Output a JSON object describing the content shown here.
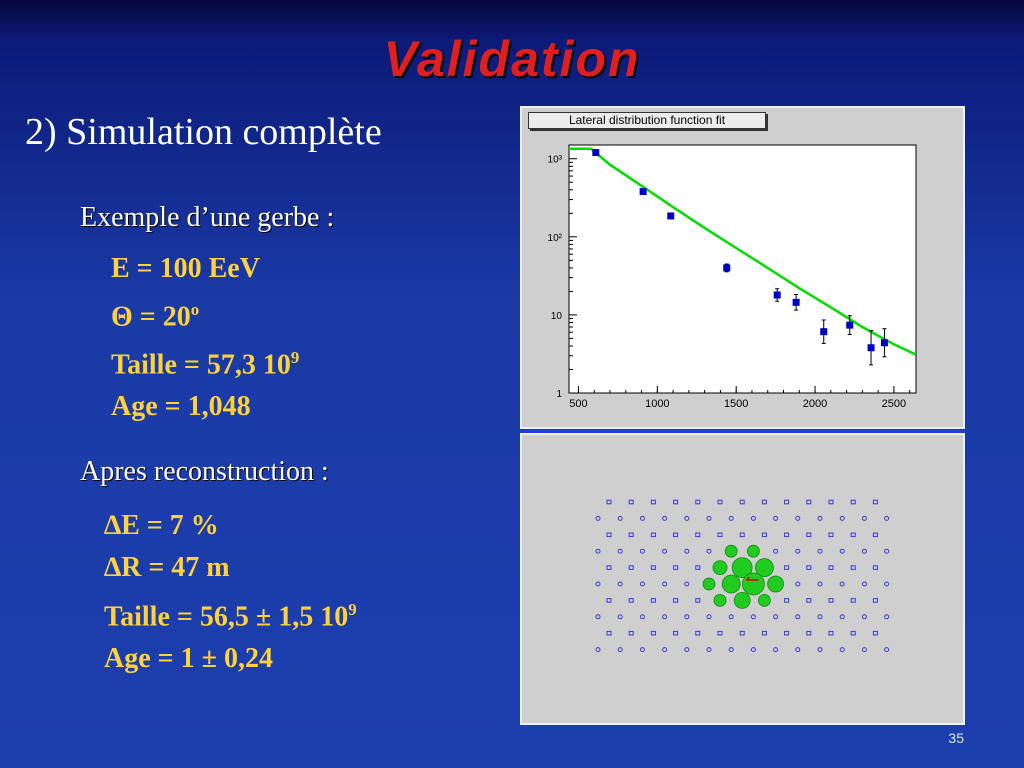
{
  "slide": {
    "title": "Validation",
    "subtitle": "2) Simulation complète",
    "section1": {
      "heading": "Exemple d’une gerbe :",
      "energy": "E = 100 EeV",
      "theta": "Θ = 20",
      "theta_sup": "o",
      "size": "Taille = 57,3 10",
      "size_sup": "9",
      "age": "Age = 1,048"
    },
    "section2": {
      "heading": "Apres reconstruction :",
      "delta_e": "∆E = 7 %",
      "delta_r": "∆R = 47 m",
      "size": "Taille = 56,5 ± 1,5 10",
      "size_sup": "9",
      "age": "Age = 1 ± 0,24"
    },
    "page_number": "35"
  },
  "chart_data": [
    {
      "type": "scatter",
      "title": "Lateral distribution function fit",
      "xlabel": "",
      "ylabel": "",
      "xlim": [
        440,
        2640
      ],
      "ylim": [
        1,
        1500
      ],
      "log_y": true,
      "x_ticks": [
        "500",
        "1000",
        "1500",
        "2000",
        "2500"
      ],
      "x_tick_values": [
        500,
        1000,
        1500,
        2000,
        2500
      ],
      "y_ticks": [
        "1",
        "10",
        "10²",
        "10³"
      ],
      "y_tick_values": [
        1,
        10,
        100,
        1000
      ],
      "points": [
        {
          "x": 610,
          "y": 1200,
          "err": 0
        },
        {
          "x": 910,
          "y": 380,
          "err": 0
        },
        {
          "x": 1085,
          "y": 185,
          "err": 0
        },
        {
          "x": 1440,
          "y": 40,
          "err": 0.05
        },
        {
          "x": 1760,
          "y": 18,
          "err": 0.08
        },
        {
          "x": 1880,
          "y": 14.5,
          "err": 0.1
        },
        {
          "x": 2055,
          "y": 6.1,
          "err": 0.15
        },
        {
          "x": 2220,
          "y": 7.4,
          "err": 0.12
        },
        {
          "x": 2355,
          "y": 3.8,
          "err": 0.22
        },
        {
          "x": 2440,
          "y": 4.4,
          "err": 0.18
        }
      ],
      "fit": {
        "x": [
          440,
          580,
          700,
          900,
          1100,
          1300,
          1500,
          1700,
          1900,
          2100,
          2300,
          2500,
          2640
        ],
        "y": [
          1340,
          1340,
          840,
          450,
          240,
          130,
          72,
          40,
          22,
          12.5,
          7,
          4.2,
          3.1
        ]
      },
      "colors": {
        "points": "#0000cc",
        "fit": "#00dd00",
        "errbars": "#000000"
      }
    },
    {
      "type": "scatter",
      "title": "",
      "detector_rows": 10,
      "detector_cols": 14,
      "detectors": {
        "odd_shape": "square",
        "even_shape": "circle",
        "color": "#3a3ad8"
      },
      "hits": [
        {
          "col": 6,
          "row": 3,
          "r": 6
        },
        {
          "col": 7,
          "row": 3,
          "r": 6
        },
        {
          "col": 5,
          "row": 4,
          "r": 7
        },
        {
          "col": 6,
          "row": 4,
          "r": 10
        },
        {
          "col": 7,
          "row": 4,
          "r": 9
        },
        {
          "col": 5,
          "row": 5,
          "r": 6
        },
        {
          "col": 6,
          "row": 5,
          "r": 9
        },
        {
          "col": 7,
          "row": 5,
          "r": 11
        },
        {
          "col": 8,
          "row": 5,
          "r": 8
        },
        {
          "col": 5,
          "row": 6,
          "r": 6
        },
        {
          "col": 6,
          "row": 6,
          "r": 8
        },
        {
          "col": 7,
          "row": 6,
          "r": 6
        }
      ],
      "core_marker": {
        "col": 7,
        "row": 5
      },
      "colors": {
        "hits": "#20cc20",
        "core": "#e00000"
      }
    }
  ]
}
